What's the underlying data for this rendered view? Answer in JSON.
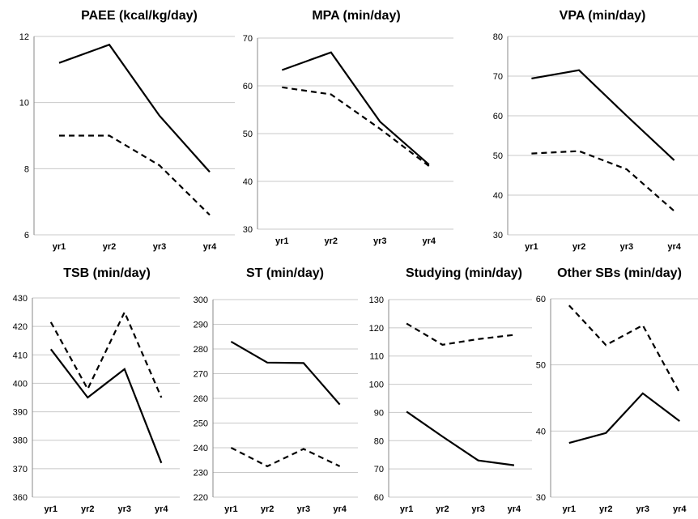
{
  "chart_data": [
    {
      "type": "line",
      "title": "PAEE (kcal/kg/day)",
      "categories": [
        "yr1",
        "yr2",
        "yr3",
        "yr4"
      ],
      "ylim": [
        6,
        12
      ],
      "yticks": [
        6,
        8,
        10,
        12
      ],
      "grid": true,
      "series": [
        {
          "style": "solid",
          "values": [
            11.2,
            11.75,
            9.6,
            7.9
          ]
        },
        {
          "style": "dashed",
          "values": [
            9.0,
            9.0,
            8.1,
            6.6
          ]
        }
      ]
    },
    {
      "type": "line",
      "title": "MPA (min/day)",
      "categories": [
        "yr1",
        "yr2",
        "yr3",
        "yr4"
      ],
      "ylim": [
        30,
        70
      ],
      "yticks": [
        30,
        40,
        50,
        60,
        70
      ],
      "grid": true,
      "series": [
        {
          "style": "solid",
          "values": [
            63.3,
            67.0,
            52.5,
            43.5
          ]
        },
        {
          "style": "dashed",
          "values": [
            59.7,
            58.2,
            51.0,
            43.2
          ]
        }
      ]
    },
    {
      "type": "line",
      "title": "VPA (min/day)",
      "categories": [
        "yr1",
        "yr2",
        "yr3",
        "yr4"
      ],
      "ylim": [
        30,
        80
      ],
      "yticks": [
        30,
        40,
        50,
        60,
        70,
        80
      ],
      "grid": true,
      "series": [
        {
          "style": "solid",
          "values": [
            69.4,
            71.5,
            60.0,
            48.8
          ]
        },
        {
          "style": "dashed",
          "values": [
            50.5,
            51.1,
            46.5,
            36.0
          ]
        }
      ]
    },
    {
      "type": "line",
      "title": "TSB (min/day)",
      "categories": [
        "yr1",
        "yr2",
        "yr3",
        "yr4"
      ],
      "ylim": [
        360,
        430
      ],
      "yticks": [
        360,
        370,
        380,
        390,
        400,
        410,
        420,
        430
      ],
      "grid": true,
      "series": [
        {
          "style": "solid",
          "values": [
            412,
            395,
            405,
            372
          ]
        },
        {
          "style": "dashed",
          "values": [
            421.5,
            398,
            425,
            395
          ]
        }
      ]
    },
    {
      "type": "line",
      "title": "ST (min/day)",
      "categories": [
        "yr1",
        "yr2",
        "yr3",
        "yr4"
      ],
      "ylim": [
        220,
        300
      ],
      "yticks": [
        220,
        230,
        240,
        250,
        260,
        270,
        280,
        290,
        300
      ],
      "grid": true,
      "series": [
        {
          "style": "solid",
          "values": [
            283,
            274.5,
            274.3,
            257.5
          ]
        },
        {
          "style": "dashed",
          "values": [
            240,
            232.5,
            239.5,
            232.5
          ]
        }
      ]
    },
    {
      "type": "line",
      "title": "Studying (min/day)",
      "categories": [
        "yr1",
        "yr2",
        "yr3",
        "yr4"
      ],
      "ylim": [
        60,
        130
      ],
      "yticks": [
        60,
        70,
        80,
        90,
        100,
        110,
        120,
        130
      ],
      "grid": true,
      "series": [
        {
          "style": "solid",
          "values": [
            90.3,
            81.5,
            73.0,
            71.3
          ]
        },
        {
          "style": "dashed",
          "values": [
            121.5,
            114.0,
            116.0,
            117.5
          ]
        }
      ]
    },
    {
      "type": "line",
      "title": "Other SBs (min/day)",
      "categories": [
        "yr1",
        "yr2",
        "yr3",
        "yr4"
      ],
      "ylim": [
        30,
        60
      ],
      "yticks": [
        30,
        40,
        50,
        60
      ],
      "grid": true,
      "series": [
        {
          "style": "solid",
          "values": [
            38.2,
            39.7,
            45.7,
            41.5
          ]
        },
        {
          "style": "dashed",
          "values": [
            59.0,
            53.0,
            56.0,
            45.8
          ]
        }
      ]
    }
  ]
}
